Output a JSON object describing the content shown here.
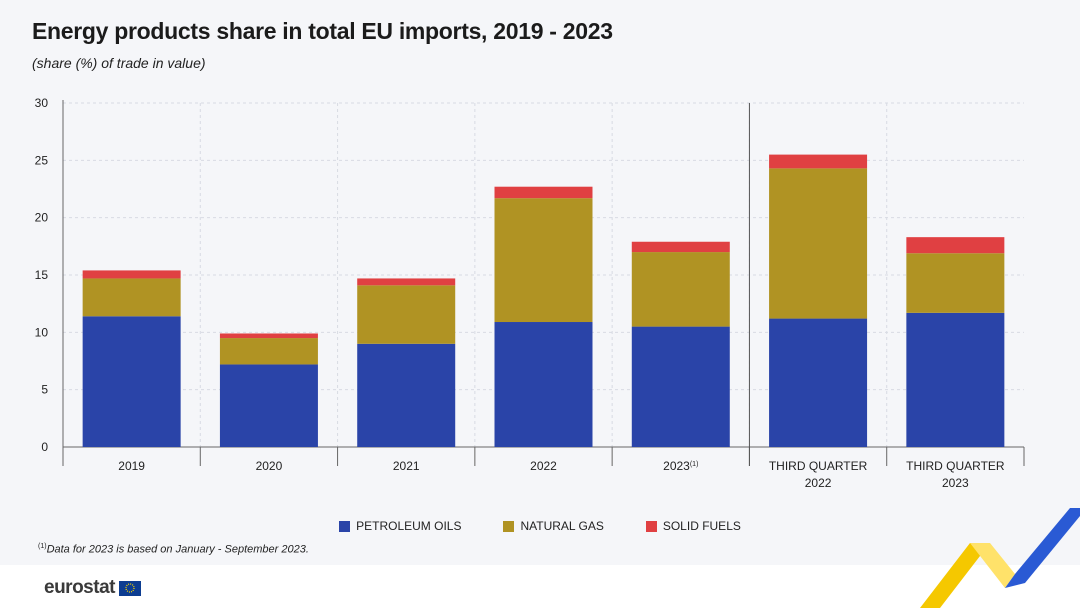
{
  "title": "Energy products share in total EU imports, 2019 - 2023",
  "subtitle": "(share (%) of trade in value)",
  "colors": {
    "petroleum": "#2a44a8",
    "gas": "#b09323",
    "solid": "#e04042"
  },
  "chart_data": {
    "type": "bar",
    "stacked": true,
    "title": "Energy products share in total EU imports, 2019 - 2023",
    "ylabel": "share (%) of trade in value",
    "ylim": [
      0,
      30
    ],
    "yticks": [
      "0",
      "5",
      "10",
      "15",
      "20",
      "25",
      "30"
    ],
    "categories": [
      {
        "line1": "2019",
        "line2": "",
        "sup": ""
      },
      {
        "line1": "2020",
        "line2": "",
        "sup": ""
      },
      {
        "line1": "2021",
        "line2": "",
        "sup": ""
      },
      {
        "line1": "2022",
        "line2": "",
        "sup": ""
      },
      {
        "line1": "2023",
        "line2": "",
        "sup": "(1)"
      },
      {
        "line1": "THIRD QUARTER",
        "line2": "2022",
        "sup": ""
      },
      {
        "line1": "THIRD QUARTER",
        "line2": "2023",
        "sup": ""
      }
    ],
    "series": [
      {
        "name": "PETROLEUM OILS",
        "values": [
          11.4,
          7.2,
          9.0,
          10.9,
          10.5,
          11.2,
          11.7
        ]
      },
      {
        "name": "NATURAL GAS",
        "values": [
          3.3,
          2.3,
          5.1,
          10.8,
          6.5,
          13.1,
          5.2
        ]
      },
      {
        "name": "SOLID FUELS",
        "values": [
          0.7,
          0.4,
          0.6,
          1.0,
          0.9,
          1.2,
          1.4
        ]
      }
    ]
  },
  "legend": [
    "PETROLEUM OILS",
    "NATURAL GAS",
    "SOLID FUELS"
  ],
  "footnote": {
    "marker": "(1)",
    "text": "Data for 2023 is based on January - September 2023."
  },
  "footer": {
    "logo_text": "eurostat"
  }
}
